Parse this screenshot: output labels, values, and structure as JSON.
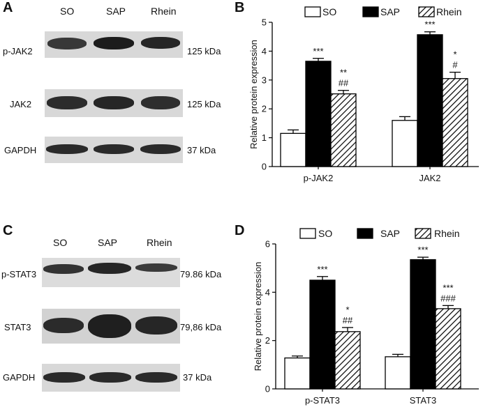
{
  "colors": {
    "so": "#ffffff",
    "sap": "#000000",
    "rhein_hatch": "#000000",
    "blot_bg": "#d6d6d6",
    "band": "#2a2a2a"
  },
  "panels": {
    "A": {
      "letter": "A",
      "lanes": [
        "SO",
        "SAP",
        "Rhein"
      ],
      "rows": [
        {
          "label": "p-JAK2",
          "size": "125 kDa"
        },
        {
          "label": "JAK2",
          "size": "125 kDa"
        },
        {
          "label": "GAPDH",
          "size": "37 kDa"
        }
      ]
    },
    "C": {
      "letter": "C",
      "lanes": [
        "SO",
        "SAP",
        "Rhein"
      ],
      "rows": [
        {
          "label": "p-STAT3",
          "size": "79.86 kDa"
        },
        {
          "label": "STAT3",
          "size": "79,86 kDa"
        },
        {
          "label": "GAPDH",
          "size": "37 kDa"
        }
      ]
    },
    "B": {
      "letter": "B"
    },
    "D": {
      "letter": "D"
    }
  },
  "chart_data": [
    {
      "panel": "B",
      "type": "bar",
      "ylabel": "Relative protein expression",
      "xlabel": "",
      "ylim": [
        0,
        5
      ],
      "yticks": [
        "0",
        "1",
        "2",
        "3",
        "4",
        "5"
      ],
      "categories": [
        "p-JAK2",
        "JAK2"
      ],
      "legend_position": "top",
      "series": [
        {
          "name": "SO",
          "values": [
            1.15,
            1.6
          ],
          "errors": [
            0.12,
            0.13
          ],
          "style": "white"
        },
        {
          "name": "SAP",
          "values": [
            3.65,
            4.57
          ],
          "errors": [
            0.1,
            0.1
          ],
          "style": "black"
        },
        {
          "name": "Rhein",
          "values": [
            2.52,
            3.05
          ],
          "errors": [
            0.12,
            0.22
          ],
          "style": "hatch"
        }
      ],
      "annotations": [
        {
          "category": 0,
          "series": 1,
          "lines": [
            "***"
          ]
        },
        {
          "category": 0,
          "series": 2,
          "lines": [
            "**",
            "##"
          ]
        },
        {
          "category": 1,
          "series": 1,
          "lines": [
            "***"
          ]
        },
        {
          "category": 1,
          "series": 2,
          "lines": [
            "*",
            "#"
          ]
        }
      ]
    },
    {
      "panel": "D",
      "type": "bar",
      "ylabel": "Relative protein expression",
      "xlabel": "",
      "ylim": [
        0,
        6
      ],
      "yticks": [
        "0",
        "2",
        "4",
        "6"
      ],
      "categories": [
        "p-STAT3",
        "STAT3"
      ],
      "legend_position": "top",
      "series": [
        {
          "name": "SO",
          "values": [
            1.28,
            1.33
          ],
          "errors": [
            0.08,
            0.1
          ],
          "style": "white"
        },
        {
          "name": "SAP",
          "values": [
            4.5,
            5.35
          ],
          "errors": [
            0.15,
            0.1
          ],
          "style": "black"
        },
        {
          "name": "Rhein",
          "values": [
            2.37,
            3.32
          ],
          "errors": [
            0.17,
            0.13
          ],
          "style": "hatch"
        }
      ],
      "annotations": [
        {
          "category": 0,
          "series": 1,
          "lines": [
            "***"
          ]
        },
        {
          "category": 0,
          "series": 2,
          "lines": [
            "*",
            "##"
          ]
        },
        {
          "category": 1,
          "series": 1,
          "lines": [
            "***"
          ]
        },
        {
          "category": 1,
          "series": 2,
          "lines": [
            "***",
            "###"
          ]
        }
      ]
    }
  ]
}
